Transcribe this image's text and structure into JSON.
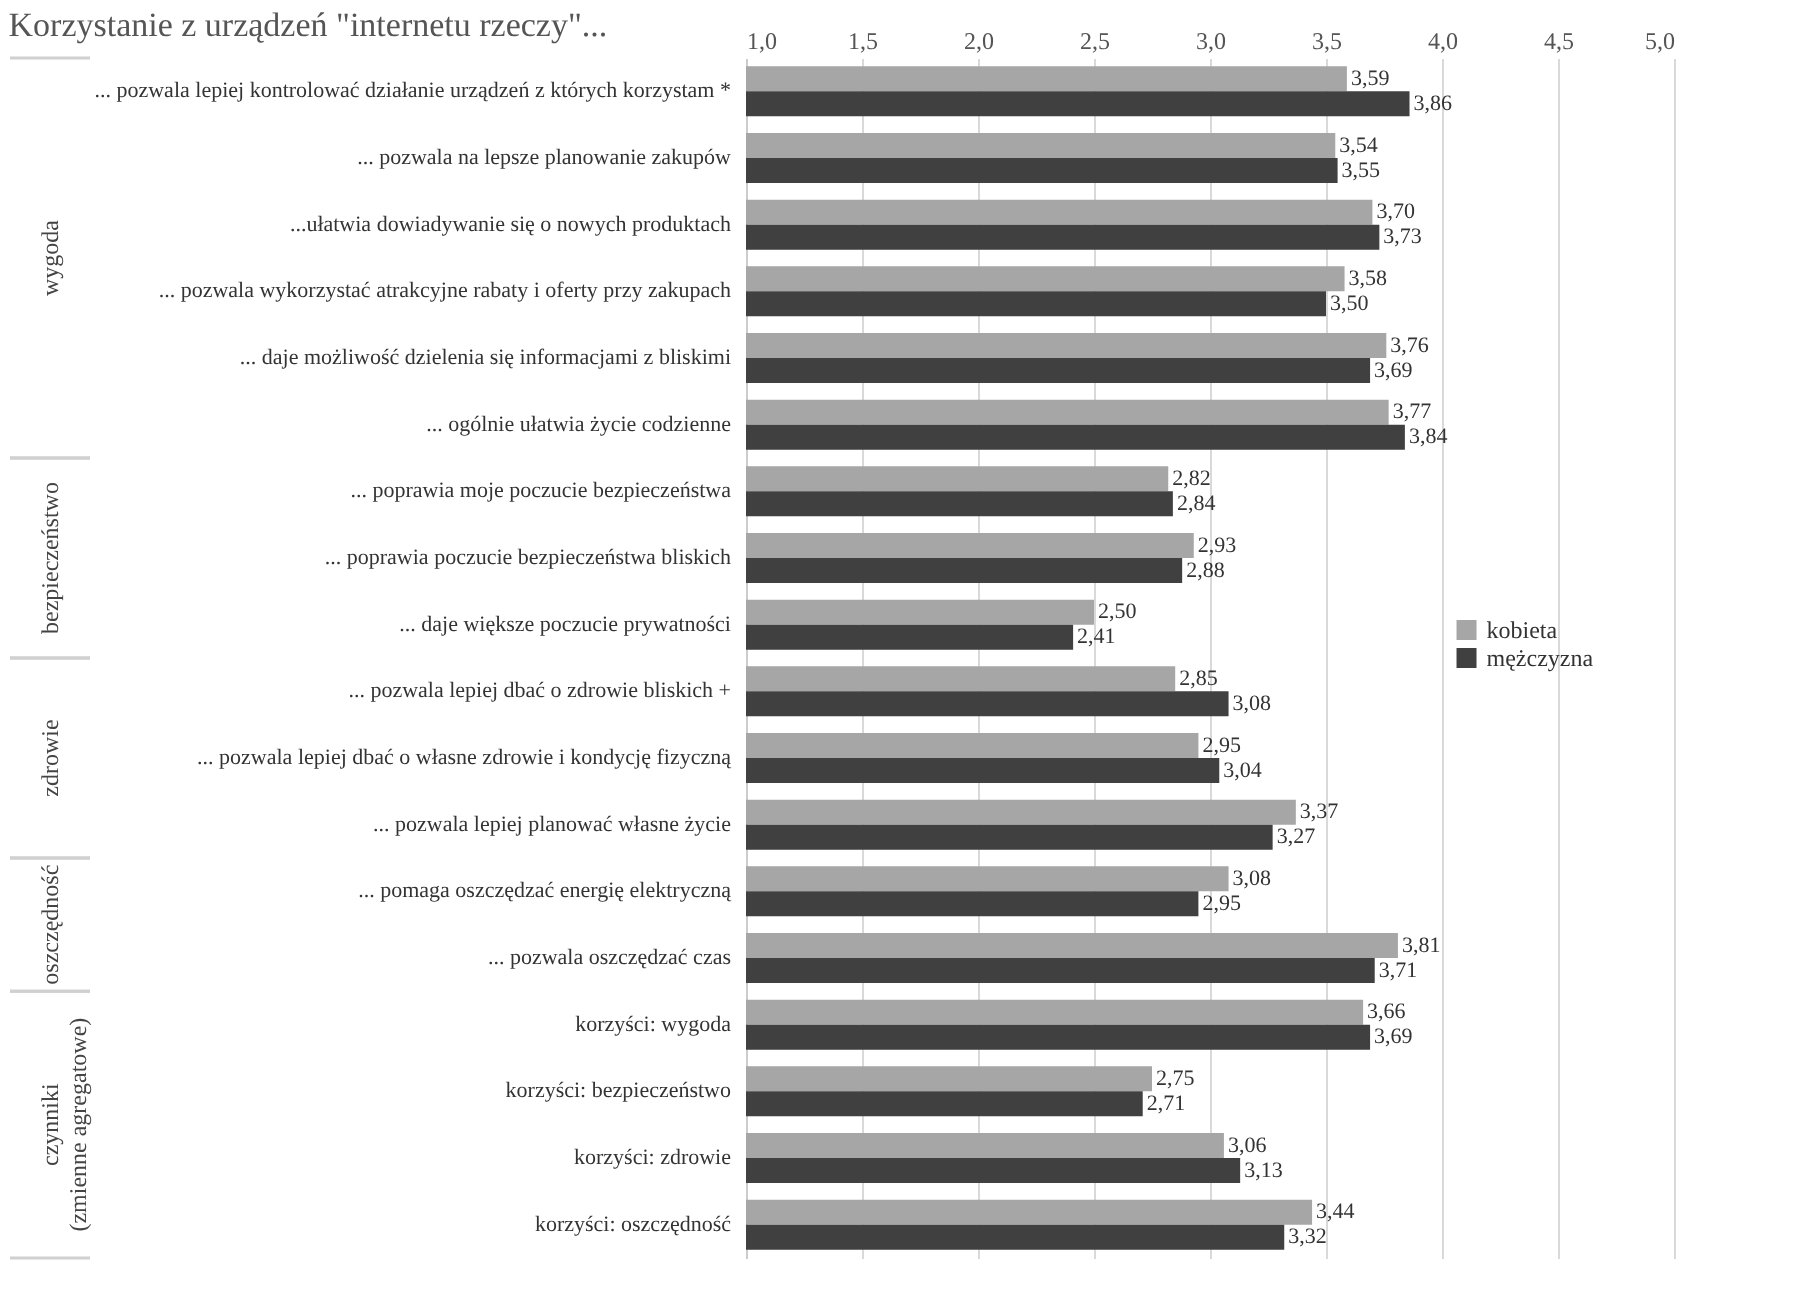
{
  "chart_data": {
    "type": "bar",
    "orientation": "horizontal",
    "title": "Korzystanie z urządzeń \"internetu rzeczy\"...",
    "categories": [
      "... pozwala lepiej kontrolować działanie urządzeń z których korzystam *",
      "... pozwala na lepsze planowanie zakupów",
      "...ułatwia dowiadywanie się o nowych produktach",
      "... pozwala wykorzystać atrakcyjne rabaty i oferty przy zakupach",
      "... daje możliwość dzielenia się informacjami z bliskimi",
      "... ogólnie ułatwia życie codzienne",
      "... poprawia moje poczucie bezpieczeństwa",
      "... poprawia poczucie bezpieczeństwa bliskich",
      "... daje większe poczucie prywatności",
      "... pozwala lepiej dbać o zdrowie bliskich +",
      "... pozwala lepiej dbać o własne zdrowie i kondycję fizyczną",
      "... pozwala lepiej planować własne życie",
      "... pomaga oszczędzać energię elektryczną",
      "... pozwala oszczędzać czas",
      "korzyści: wygoda",
      "korzyści: bezpieczeństwo",
      "korzyści: zdrowie",
      "korzyści: oszczędność"
    ],
    "series": [
      {
        "name": "kobieta",
        "color": "#a6a6a6",
        "values": [
          3.59,
          3.54,
          3.7,
          3.58,
          3.76,
          3.77,
          2.82,
          2.93,
          2.5,
          2.85,
          2.95,
          3.37,
          3.08,
          3.81,
          3.66,
          2.75,
          3.06,
          3.44
        ],
        "value_labels": [
          "3,59",
          "3,54",
          "3,70",
          "3,58",
          "3,76",
          "3,77",
          "2,82",
          "2,93",
          "2,50",
          "2,85",
          "2,95",
          "3,37",
          "3,08",
          "3,81",
          "3,66",
          "2,75",
          "3,06",
          "3,44"
        ]
      },
      {
        "name": "mężczyzna",
        "color": "#404040",
        "values": [
          3.86,
          3.55,
          3.73,
          3.5,
          3.69,
          3.84,
          2.84,
          2.88,
          2.41,
          3.08,
          3.04,
          3.27,
          2.95,
          3.71,
          3.69,
          2.71,
          3.13,
          3.32
        ],
        "value_labels": [
          "3,86",
          "3,55",
          "3,73",
          "3,50",
          "3,69",
          "3,84",
          "2,84",
          "2,88",
          "2,41",
          "3,08",
          "3,04",
          "3,27",
          "2,95",
          "3,71",
          "3,69",
          "2,71",
          "3,13",
          "3,32"
        ]
      }
    ],
    "xlim": [
      1,
      5
    ],
    "xticks": [
      {
        "value": 1,
        "label": "1,0"
      },
      {
        "value": 1.5,
        "label": "1,5"
      },
      {
        "value": 2,
        "label": "2,0"
      },
      {
        "value": 2.5,
        "label": "2,5"
      },
      {
        "value": 3,
        "label": "3,0"
      },
      {
        "value": 3.5,
        "label": "3,5"
      },
      {
        "value": 4,
        "label": "4,0"
      },
      {
        "value": 4.5,
        "label": "4,5"
      },
      {
        "value": 5,
        "label": "5,0"
      }
    ],
    "grid": "x",
    "legend": "right",
    "annotations": [
      "wygoda",
      "bezpieczeństwo",
      "zdrowie",
      "oszczędność",
      "czynniki\n(zmienne agregatowe)"
    ]
  }
}
